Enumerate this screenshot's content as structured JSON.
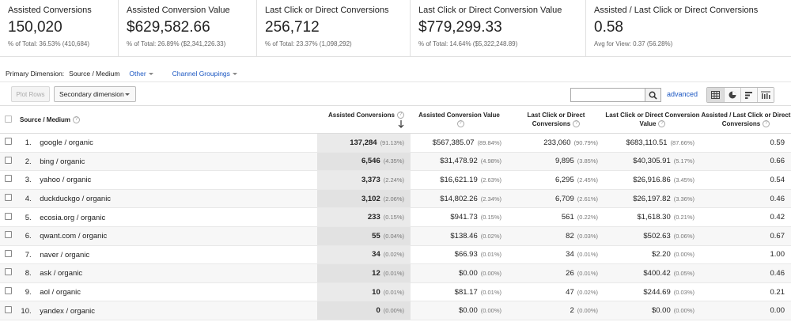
{
  "scorecards": [
    {
      "label": "Assisted Conversions",
      "value": "150,020",
      "sub": "% of Total: 36.53% (410,684)"
    },
    {
      "label": "Assisted Conversion Value",
      "value": "$629,582.66",
      "sub": "% of Total: 26.89% ($2,341,226.33)"
    },
    {
      "label": "Last Click or Direct Conversions",
      "value": "256,712",
      "sub": "% of Total: 23.37% (1,098,292)"
    },
    {
      "label": "Last Click or Direct Conversion Value",
      "value": "$779,299.33",
      "sub": "% of Total: 14.64% ($5,322,248.89)"
    },
    {
      "label": "Assisted / Last Click or Direct Conversions",
      "value": "0.58",
      "sub": "Avg for View: 0.37 (56.28%)"
    }
  ],
  "primary_dimension": {
    "label": "Primary Dimension:",
    "selected": "Source / Medium",
    "other": "Other",
    "channel_groupings": "Channel Groupings"
  },
  "toolbar": {
    "plot_rows": "Plot Rows",
    "secondary_dimension": "Secondary dimension",
    "search_value": "",
    "advanced": "advanced"
  },
  "table": {
    "headers": {
      "source_medium": "Source / Medium",
      "assisted_conversions": "Assisted Conversions",
      "assisted_conversion_value": "Assisted Conversion Value",
      "last_click_conversions": "Last Click or Direct Conversions",
      "last_click_conversion_value": "Last Click or Direct Conversion Value",
      "ratio": "Assisted / Last Click or Direct Conversions"
    },
    "rows": [
      {
        "rank": "1.",
        "source": "google / organic",
        "ac": "137,284",
        "ac_pct": "(91.13%)",
        "acv": "$567,385.07",
        "acv_pct": "(89.84%)",
        "lc": "233,060",
        "lc_pct": "(90.79%)",
        "lcv": "$683,110.51",
        "lcv_pct": "(87.66%)",
        "ratio": "0.59"
      },
      {
        "rank": "2.",
        "source": "bing / organic",
        "ac": "6,546",
        "ac_pct": "(4.35%)",
        "acv": "$31,478.92",
        "acv_pct": "(4.98%)",
        "lc": "9,895",
        "lc_pct": "(3.85%)",
        "lcv": "$40,305.91",
        "lcv_pct": "(5.17%)",
        "ratio": "0.66"
      },
      {
        "rank": "3.",
        "source": "yahoo / organic",
        "ac": "3,373",
        "ac_pct": "(2.24%)",
        "acv": "$16,621.19",
        "acv_pct": "(2.63%)",
        "lc": "6,295",
        "lc_pct": "(2.45%)",
        "lcv": "$26,916.86",
        "lcv_pct": "(3.45%)",
        "ratio": "0.54"
      },
      {
        "rank": "4.",
        "source": "duckduckgo / organic",
        "ac": "3,102",
        "ac_pct": "(2.06%)",
        "acv": "$14,802.26",
        "acv_pct": "(2.34%)",
        "lc": "6,709",
        "lc_pct": "(2.61%)",
        "lcv": "$26,197.82",
        "lcv_pct": "(3.36%)",
        "ratio": "0.46"
      },
      {
        "rank": "5.",
        "source": "ecosia.org / organic",
        "ac": "233",
        "ac_pct": "(0.15%)",
        "acv": "$941.73",
        "acv_pct": "(0.15%)",
        "lc": "561",
        "lc_pct": "(0.22%)",
        "lcv": "$1,618.30",
        "lcv_pct": "(0.21%)",
        "ratio": "0.42"
      },
      {
        "rank": "6.",
        "source": "qwant.com / organic",
        "ac": "55",
        "ac_pct": "(0.04%)",
        "acv": "$138.46",
        "acv_pct": "(0.02%)",
        "lc": "82",
        "lc_pct": "(0.03%)",
        "lcv": "$502.63",
        "lcv_pct": "(0.06%)",
        "ratio": "0.67"
      },
      {
        "rank": "7.",
        "source": "naver / organic",
        "ac": "34",
        "ac_pct": "(0.02%)",
        "acv": "$66.93",
        "acv_pct": "(0.01%)",
        "lc": "34",
        "lc_pct": "(0.01%)",
        "lcv": "$2.20",
        "lcv_pct": "(0.00%)",
        "ratio": "1.00"
      },
      {
        "rank": "8.",
        "source": "ask / organic",
        "ac": "12",
        "ac_pct": "(0.01%)",
        "acv": "$0.00",
        "acv_pct": "(0.00%)",
        "lc": "26",
        "lc_pct": "(0.01%)",
        "lcv": "$400.42",
        "lcv_pct": "(0.05%)",
        "ratio": "0.46"
      },
      {
        "rank": "9.",
        "source": "aol / organic",
        "ac": "10",
        "ac_pct": "(0.01%)",
        "acv": "$81.17",
        "acv_pct": "(0.01%)",
        "lc": "47",
        "lc_pct": "(0.02%)",
        "lcv": "$244.69",
        "lcv_pct": "(0.03%)",
        "ratio": "0.21"
      },
      {
        "rank": "10.",
        "source": "yandex / organic",
        "ac": "0",
        "ac_pct": "(0.00%)",
        "acv": "$0.00",
        "acv_pct": "(0.00%)",
        "lc": "2",
        "lc_pct": "(0.00%)",
        "lcv": "$0.00",
        "lcv_pct": "(0.00%)",
        "ratio": "0.00"
      }
    ]
  },
  "icons": {
    "search": "search-icon",
    "help": "help-icon",
    "sort": "sort-descending-arrow-icon",
    "views": [
      "table-view-icon",
      "pie-view-icon",
      "performance-view-icon",
      "comparison-view-icon"
    ]
  },
  "colors": {
    "link": "#1a56c2",
    "sorted_column": "#eaeaea"
  }
}
